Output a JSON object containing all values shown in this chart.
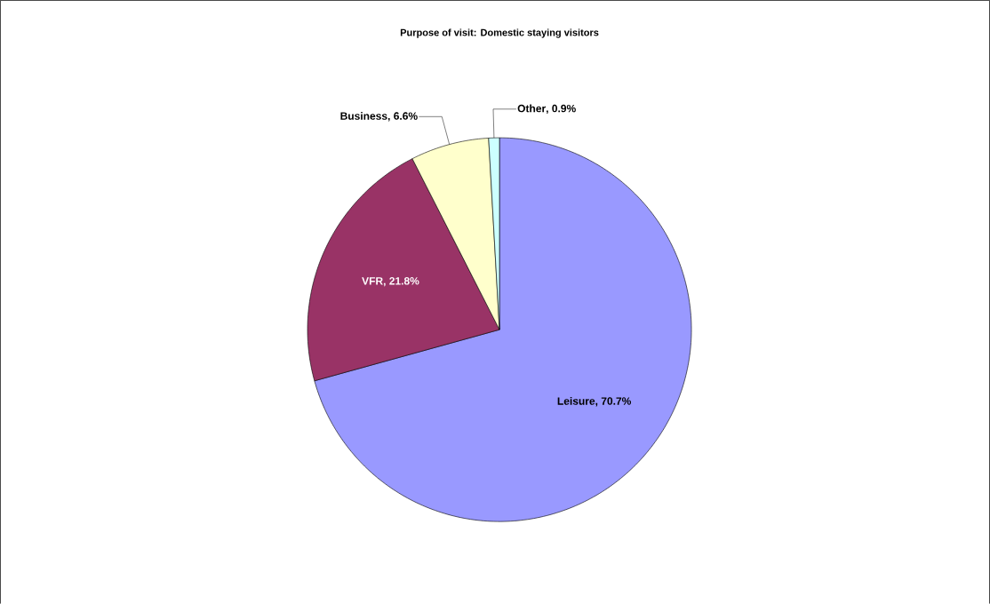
{
  "chart_data": {
    "type": "pie",
    "title": "Purpose of visit: Domestic staying visitors",
    "categories": [
      "Leisure",
      "VFR",
      "Business",
      "Other"
    ],
    "values": [
      70.7,
      21.8,
      6.6,
      0.9
    ],
    "colors": [
      "#9999ff",
      "#993366",
      "#ffffcc",
      "#ccffff"
    ],
    "value_labels": [
      ", 70.7%",
      ", 21.8%",
      ", 6.6%",
      ", 0.9%"
    ]
  }
}
